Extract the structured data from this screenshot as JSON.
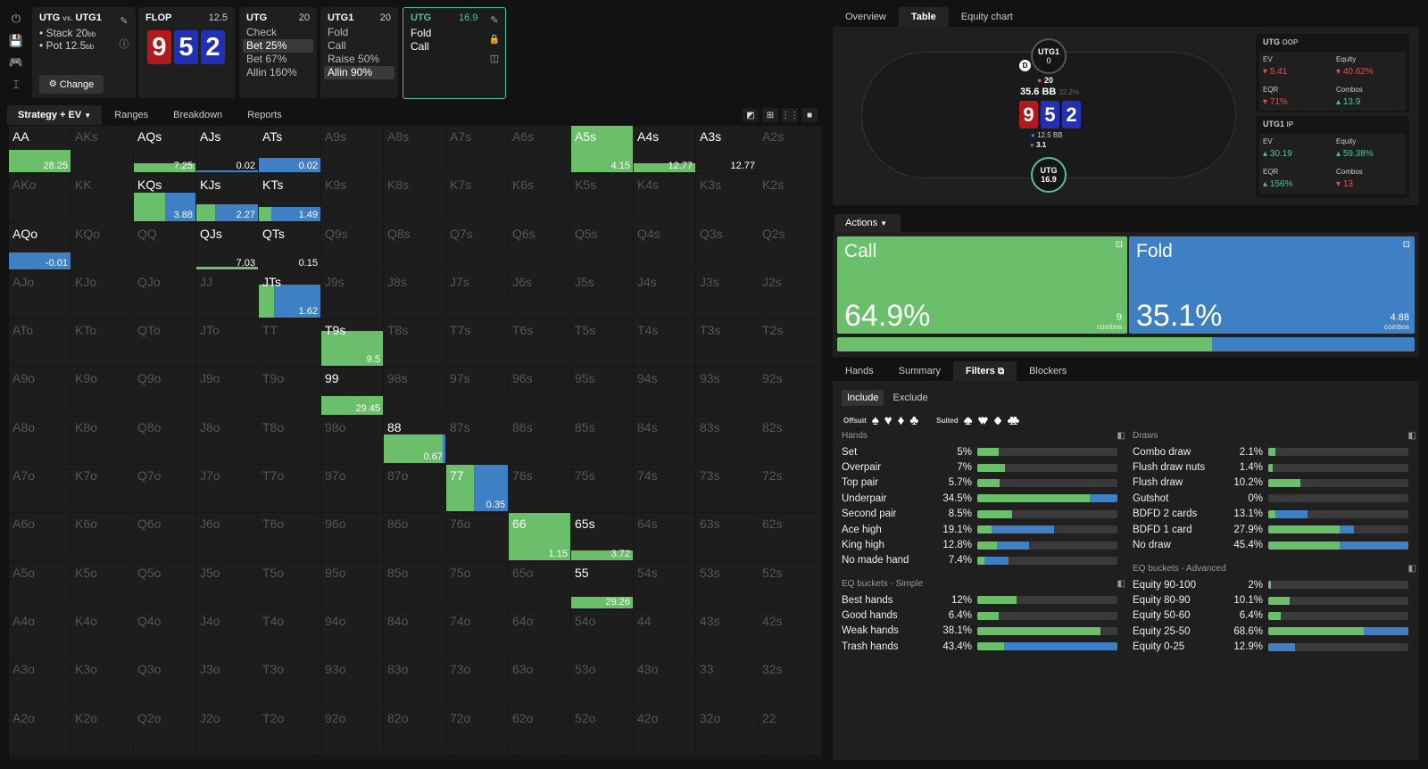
{
  "colors": {
    "green": "#6bbf6a",
    "blue": "#3f7fc4",
    "red": "#e05252",
    "teal": "#4fc29c"
  },
  "left_toolbar": {
    "icons": [
      "power-icon",
      "save-icon",
      "gamepad-icon",
      "text-cursor-icon"
    ]
  },
  "matchup": {
    "title_a": "UTG",
    "vs": "vs.",
    "title_b": "UTG1",
    "stack": "Stack 20",
    "stack_unit": "bb",
    "pot": "Pot 12.5",
    "pot_unit": "bb",
    "change_label": "Change"
  },
  "flop": {
    "label": "FLOP",
    "pot": "12.5",
    "cards": [
      {
        "rank": "9",
        "color": "red"
      },
      {
        "rank": "5",
        "color": "blue"
      },
      {
        "rank": "2",
        "color": "blue"
      }
    ]
  },
  "nav_nodes": [
    {
      "player": "UTG",
      "stack": "20",
      "actions": [
        "Check",
        "Bet 25%",
        "Bet 67%",
        "Allin 160%"
      ],
      "selected": 1
    },
    {
      "player": "UTG1",
      "stack": "20",
      "actions": [
        "Fold",
        "Call",
        "Raise 50%",
        "Allin 90%"
      ],
      "selected": 3
    },
    {
      "player": "UTG",
      "stack": "16.9",
      "actions": [
        "Fold",
        "Call"
      ],
      "selected": -1
    }
  ],
  "range_tabs": [
    "Strategy + EV",
    "Ranges",
    "Breakdown",
    "Reports"
  ],
  "grid": [
    [
      "AA",
      "AKs",
      "AQs",
      "AJs",
      "ATs",
      "A9s",
      "A8s",
      "A7s",
      "A6s",
      "A5s",
      "A4s",
      "A3s",
      "A2s"
    ],
    [
      "AKo",
      "KK",
      "KQs",
      "KJs",
      "KTs",
      "K9s",
      "K8s",
      "K7s",
      "K6s",
      "K5s",
      "K4s",
      "K3s",
      "K2s"
    ],
    [
      "AQo",
      "KQo",
      "QQ",
      "QJs",
      "QTs",
      "Q9s",
      "Q8s",
      "Q7s",
      "Q6s",
      "Q5s",
      "Q4s",
      "Q3s",
      "Q2s"
    ],
    [
      "AJo",
      "KJo",
      "QJo",
      "JJ",
      "JTs",
      "J9s",
      "J8s",
      "J7s",
      "J6s",
      "J5s",
      "J4s",
      "J3s",
      "J2s"
    ],
    [
      "ATo",
      "KTo",
      "QTo",
      "JTo",
      "TT",
      "T9s",
      "T8s",
      "T7s",
      "T6s",
      "T5s",
      "T4s",
      "T3s",
      "T2s"
    ],
    [
      "A9o",
      "K9o",
      "Q9o",
      "J9o",
      "T9o",
      "99",
      "98s",
      "97s",
      "96s",
      "95s",
      "94s",
      "93s",
      "92s"
    ],
    [
      "A8o",
      "K8o",
      "Q8o",
      "J8o",
      "T8o",
      "98o",
      "88",
      "87s",
      "86s",
      "85s",
      "84s",
      "83s",
      "82s"
    ],
    [
      "A7o",
      "K7o",
      "Q7o",
      "J7o",
      "T7o",
      "97o",
      "87o",
      "77",
      "76s",
      "75s",
      "74s",
      "73s",
      "72s"
    ],
    [
      "A6o",
      "K6o",
      "Q6o",
      "J6o",
      "T6o",
      "96o",
      "86o",
      "76o",
      "66",
      "65s",
      "64s",
      "63s",
      "62s"
    ],
    [
      "A5o",
      "K5o",
      "Q5o",
      "J5o",
      "T5o",
      "95o",
      "85o",
      "75o",
      "65o",
      "55",
      "54s",
      "53s",
      "52s"
    ],
    [
      "A4o",
      "K4o",
      "Q4o",
      "J4o",
      "T4o",
      "94o",
      "84o",
      "74o",
      "64o",
      "54o",
      "44",
      "43s",
      "42s"
    ],
    [
      "A3o",
      "K3o",
      "Q3o",
      "J3o",
      "T3o",
      "93o",
      "83o",
      "73o",
      "63o",
      "53o",
      "43o",
      "33",
      "32s"
    ],
    [
      "A2o",
      "K2o",
      "Q2o",
      "J2o",
      "T2o",
      "92o",
      "82o",
      "72o",
      "62o",
      "52o",
      "42o",
      "32o",
      "22"
    ]
  ],
  "grid_cells": [
    {
      "r": 0,
      "c": 0,
      "g": 1,
      "b": 0,
      "freq": 0.47,
      "ev": "28.25"
    },
    {
      "r": 0,
      "c": 2,
      "g": 1,
      "b": 0,
      "freq": 0.2,
      "ev": "7.25"
    },
    {
      "r": 0,
      "c": 3,
      "g": 0,
      "b": 1,
      "freq": 0.05,
      "ev": "0.02"
    },
    {
      "r": 0,
      "c": 4,
      "g": 0,
      "b": 1,
      "freq": 0.3,
      "ev": "0.02"
    },
    {
      "r": 0,
      "c": 9,
      "g": 1,
      "b": 0,
      "freq": 1,
      "ev": "4.15"
    },
    {
      "r": 0,
      "c": 10,
      "g": 1,
      "b": 0,
      "freq": 0.2,
      "ev": "12.77"
    },
    {
      "r": 0,
      "c": 11,
      "g": 0,
      "b": 0,
      "freq": 0,
      "ev": "12.77"
    },
    {
      "r": 1,
      "c": 2,
      "g": 0.5,
      "b": 0.5,
      "freq": 0.6,
      "ev": "3.88"
    },
    {
      "r": 1,
      "c": 3,
      "g": 0.3,
      "b": 0.7,
      "freq": 0.35,
      "ev": "2.27"
    },
    {
      "r": 1,
      "c": 4,
      "g": 0.2,
      "b": 0.8,
      "freq": 0.3,
      "ev": "1.49"
    },
    {
      "r": 2,
      "c": 0,
      "g": 0,
      "b": 1,
      "freq": 0.35,
      "ev": "-0.01"
    },
    {
      "r": 2,
      "c": 3,
      "g": 1,
      "b": 0,
      "freq": 0.05,
      "ev": "7.03"
    },
    {
      "r": 2,
      "c": 4,
      "g": 0,
      "b": 0,
      "freq": 0,
      "ev": "0.15"
    },
    {
      "r": 3,
      "c": 4,
      "g": 0.25,
      "b": 0.75,
      "freq": 0.7,
      "ev": "1.62"
    },
    {
      "r": 4,
      "c": 5,
      "g": 1,
      "b": 0,
      "freq": 0.75,
      "ev": "9.5"
    },
    {
      "r": 5,
      "c": 5,
      "g": 1,
      "b": 0,
      "freq": 0.4,
      "ev": "29.45"
    },
    {
      "r": 6,
      "c": 6,
      "g": 0.95,
      "b": 0.05,
      "freq": 0.6,
      "ev": "0.67"
    },
    {
      "r": 7,
      "c": 7,
      "g": 0.45,
      "b": 0.55,
      "freq": 1,
      "ev": "0.35"
    },
    {
      "r": 8,
      "c": 8,
      "g": 1,
      "b": 0,
      "freq": 1,
      "ev": "1.15"
    },
    {
      "r": 8,
      "c": 9,
      "g": 1,
      "b": 0,
      "freq": 0.2,
      "ev": "3.72"
    },
    {
      "r": 9,
      "c": 9,
      "g": 1,
      "b": 0,
      "freq": 0.25,
      "ev": "29.26"
    }
  ],
  "right_tabs": [
    "Overview",
    "Table",
    "Equity chart"
  ],
  "table": {
    "top_player": {
      "name": "UTG1",
      "stack": "0"
    },
    "dealer": "D",
    "top_bet": "20",
    "pot": "35.6 BB",
    "pot_sub": "32.2%",
    "board": [
      {
        "rank": "9",
        "color": "red"
      },
      {
        "rank": "5",
        "color": "blue"
      },
      {
        "rank": "2",
        "color": "blue"
      }
    ],
    "bottom_bet1": "12.5 BB",
    "bottom_bet2": "3.1",
    "bottom_player": {
      "name": "UTG",
      "stack": "16.9"
    }
  },
  "stats": {
    "oop": {
      "name": "UTG",
      "tag": "OOP",
      "ev_label": "EV",
      "ev": "5.41",
      "equity_label": "Equity",
      "equity": "40.62%",
      "eqr_label": "EQR",
      "eqr": "71%",
      "combos_label": "Combos",
      "combos": "13.9"
    },
    "ip": {
      "name": "UTG1",
      "tag": "IP",
      "ev_label": "EV",
      "ev": "30.19",
      "equity_label": "Equity",
      "equity": "59.38%",
      "eqr_label": "EQR",
      "eqr": "156%",
      "combos_label": "Combos",
      "combos": "13"
    }
  },
  "actions": {
    "dropdown": "Actions",
    "call": {
      "label": "Call",
      "pct": "64.9%",
      "combos": "9",
      "combos_label": "combos",
      "ratio": 0.649
    },
    "fold": {
      "label": "Fold",
      "pct": "35.1%",
      "combos": "4.88",
      "combos_label": "combos"
    }
  },
  "bottom_tabs": [
    "Hands",
    "Summary",
    "Filters",
    "Blockers"
  ],
  "filters": {
    "include": "Include",
    "exclude": "Exclude",
    "offsuit": "Offsuit",
    "suited": "Suited"
  },
  "hands": {
    "title": "Hands",
    "rows": [
      {
        "name": "Set",
        "pct": "5%",
        "g": 0.15,
        "b": 0
      },
      {
        "name": "Overpair",
        "pct": "7%",
        "g": 0.2,
        "b": 0
      },
      {
        "name": "Top pair",
        "pct": "5.7%",
        "g": 0.16,
        "b": 0
      },
      {
        "name": "Underpair",
        "pct": "34.5%",
        "g": 0.8,
        "b": 0.2
      },
      {
        "name": "Second pair",
        "pct": "8.5%",
        "g": 0.25,
        "b": 0
      },
      {
        "name": "Ace high",
        "pct": "19.1%",
        "g": 0.1,
        "b": 0.45
      },
      {
        "name": "King high",
        "pct": "12.8%",
        "g": 0.14,
        "b": 0.23
      },
      {
        "name": "No made hand",
        "pct": "7.4%",
        "g": 0.05,
        "b": 0.17
      }
    ]
  },
  "eq_simple": {
    "title": "EQ buckets - Simple",
    "rows": [
      {
        "name": "Best hands",
        "pct": "12%",
        "g": 0.28,
        "b": 0
      },
      {
        "name": "Good hands",
        "pct": "6.4%",
        "g": 0.15,
        "b": 0
      },
      {
        "name": "Weak hands",
        "pct": "38.1%",
        "g": 0.88,
        "b": 0
      },
      {
        "name": "Trash hands",
        "pct": "43.4%",
        "g": 0.19,
        "b": 0.81
      }
    ]
  },
  "draws": {
    "title": "Draws",
    "rows": [
      {
        "name": "Combo draw",
        "pct": "2.1%",
        "g": 0.05,
        "b": 0
      },
      {
        "name": "Flush draw nuts",
        "pct": "1.4%",
        "g": 0.03,
        "b": 0
      },
      {
        "name": "Flush draw",
        "pct": "10.2%",
        "g": 0.23,
        "b": 0
      },
      {
        "name": "Gutshot",
        "pct": "0%",
        "g": 0,
        "b": 0
      },
      {
        "name": "BDFD 2 cards",
        "pct": "13.1%",
        "g": 0.05,
        "b": 0.23
      },
      {
        "name": "BDFD 1 card",
        "pct": "27.9%",
        "g": 0.51,
        "b": 0.1
      },
      {
        "name": "No draw",
        "pct": "45.4%",
        "g": 0.51,
        "b": 0.49
      }
    ]
  },
  "eq_adv": {
    "title": "EQ buckets - Advanced",
    "rows": [
      {
        "name": "Equity 90-100",
        "pct": "2%",
        "g": 0.02,
        "b": 0
      },
      {
        "name": "Equity 80-90",
        "pct": "10.1%",
        "g": 0.15,
        "b": 0
      },
      {
        "name": "Equity 50-60",
        "pct": "6.4%",
        "g": 0.09,
        "b": 0
      },
      {
        "name": "Equity 25-50",
        "pct": "68.6%",
        "g": 0.68,
        "b": 0.32
      },
      {
        "name": "Equity 0-25",
        "pct": "12.9%",
        "g": 0,
        "b": 0.19
      }
    ]
  }
}
